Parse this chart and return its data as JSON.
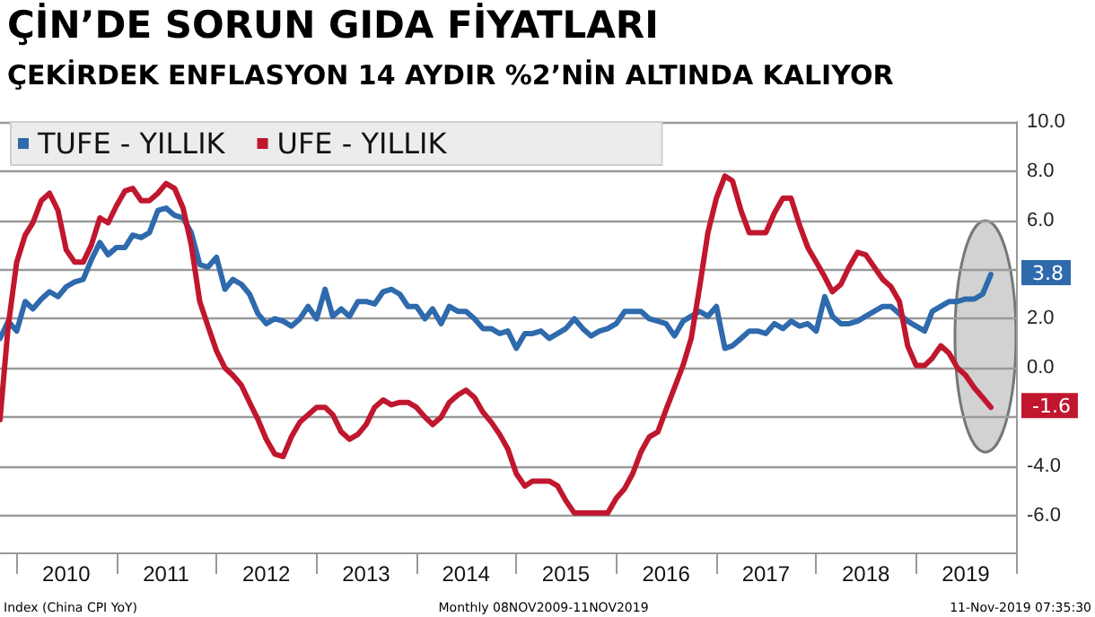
{
  "chart_data": {
    "type": "line",
    "title": "ÇİN’DE SORUN GIDA FİYATLARI",
    "subtitle": "ÇEKİRDEK ENFLASYON 14 AYDIR %2’NİN ALTINDA KALIYOR",
    "x": [
      "2009-11",
      "2009-12",
      "2010-01",
      "2010-02",
      "2010-03",
      "2010-04",
      "2010-05",
      "2010-06",
      "2010-07",
      "2010-08",
      "2010-09",
      "2010-10",
      "2010-11",
      "2010-12",
      "2011-01",
      "2011-02",
      "2011-03",
      "2011-04",
      "2011-05",
      "2011-06",
      "2011-07",
      "2011-08",
      "2011-09",
      "2011-10",
      "2011-11",
      "2011-12",
      "2012-01",
      "2012-02",
      "2012-03",
      "2012-04",
      "2012-05",
      "2012-06",
      "2012-07",
      "2012-08",
      "2012-09",
      "2012-10",
      "2012-11",
      "2012-12",
      "2013-01",
      "2013-02",
      "2013-03",
      "2013-04",
      "2013-05",
      "2013-06",
      "2013-07",
      "2013-08",
      "2013-09",
      "2013-10",
      "2013-11",
      "2013-12",
      "2014-01",
      "2014-02",
      "2014-03",
      "2014-04",
      "2014-05",
      "2014-06",
      "2014-07",
      "2014-08",
      "2014-09",
      "2014-10",
      "2014-11",
      "2014-12",
      "2015-01",
      "2015-02",
      "2015-03",
      "2015-04",
      "2015-05",
      "2015-06",
      "2015-07",
      "2015-08",
      "2015-09",
      "2015-10",
      "2015-11",
      "2015-12",
      "2016-01",
      "2016-02",
      "2016-03",
      "2016-04",
      "2016-05",
      "2016-06",
      "2016-07",
      "2016-08",
      "2016-09",
      "2016-10",
      "2016-11",
      "2016-12",
      "2017-01",
      "2017-02",
      "2017-03",
      "2017-04",
      "2017-05",
      "2017-06",
      "2017-07",
      "2017-08",
      "2017-09",
      "2017-10",
      "2017-11",
      "2017-12",
      "2018-01",
      "2018-02",
      "2018-03",
      "2018-04",
      "2018-05",
      "2018-06",
      "2018-07",
      "2018-08",
      "2018-09",
      "2018-10",
      "2018-11",
      "2018-12",
      "2019-01",
      "2019-02",
      "2019-03",
      "2019-04",
      "2019-05",
      "2019-06",
      "2019-07",
      "2019-08",
      "2019-09",
      "2019-10"
    ],
    "series": [
      {
        "name": "TUFE - YILLIK",
        "color": "#2e6aac",
        "values": [
          1.2,
          1.9,
          1.5,
          2.7,
          2.4,
          2.8,
          3.1,
          2.9,
          3.3,
          3.5,
          3.6,
          4.4,
          5.1,
          4.6,
          4.9,
          4.9,
          5.4,
          5.3,
          5.5,
          6.4,
          6.5,
          6.2,
          6.1,
          5.5,
          4.2,
          4.1,
          4.5,
          3.2,
          3.6,
          3.4,
          3.0,
          2.2,
          1.8,
          2.0,
          1.9,
          1.7,
          2.0,
          2.5,
          2.0,
          3.2,
          2.1,
          2.4,
          2.1,
          2.7,
          2.7,
          2.6,
          3.1,
          3.2,
          3.0,
          2.5,
          2.5,
          2.0,
          2.4,
          1.8,
          2.5,
          2.3,
          2.3,
          2.0,
          1.6,
          1.6,
          1.4,
          1.5,
          0.8,
          1.4,
          1.4,
          1.5,
          1.2,
          1.4,
          1.6,
          2.0,
          1.6,
          1.3,
          1.5,
          1.6,
          1.8,
          2.3,
          2.3,
          2.3,
          2.0,
          1.9,
          1.8,
          1.3,
          1.9,
          2.1,
          2.3,
          2.1,
          2.5,
          0.8,
          0.9,
          1.2,
          1.5,
          1.5,
          1.4,
          1.8,
          1.6,
          1.9,
          1.7,
          1.8,
          1.5,
          2.9,
          2.1,
          1.8,
          1.8,
          1.9,
          2.1,
          2.3,
          2.5,
          2.5,
          2.2,
          1.9,
          1.7,
          1.5,
          2.3,
          2.5,
          2.7,
          2.7,
          2.8,
          2.8,
          3.0,
          3.8
        ]
      },
      {
        "name": "UFE - YILLIK",
        "color": "#c0172f",
        "values": [
          -2.1,
          1.7,
          4.3,
          5.4,
          5.9,
          6.8,
          7.1,
          6.4,
          4.8,
          4.3,
          4.3,
          5.0,
          6.1,
          5.9,
          6.6,
          7.2,
          7.3,
          6.8,
          6.8,
          7.1,
          7.5,
          7.3,
          6.5,
          5.0,
          2.7,
          1.7,
          0.7,
          0.0,
          -0.3,
          -0.7,
          -1.4,
          -2.1,
          -2.9,
          -3.5,
          -3.6,
          -2.8,
          -2.2,
          -1.9,
          -1.6,
          -1.6,
          -1.9,
          -2.6,
          -2.9,
          -2.7,
          -2.3,
          -1.6,
          -1.3,
          -1.5,
          -1.4,
          -1.4,
          -1.6,
          -2.0,
          -2.3,
          -2.0,
          -1.4,
          -1.1,
          -0.9,
          -1.2,
          -1.8,
          -2.2,
          -2.7,
          -3.3,
          -4.3,
          -4.8,
          -4.6,
          -4.6,
          -4.6,
          -4.8,
          -5.4,
          -5.9,
          -5.9,
          -5.9,
          -5.9,
          -5.9,
          -5.3,
          -4.9,
          -4.3,
          -3.4,
          -2.8,
          -2.6,
          -1.7,
          -0.8,
          0.1,
          1.2,
          3.3,
          5.5,
          6.9,
          7.8,
          7.6,
          6.4,
          5.5,
          5.5,
          5.5,
          6.3,
          6.9,
          6.9,
          5.8,
          4.9,
          4.3,
          3.7,
          3.1,
          3.4,
          4.1,
          4.7,
          4.6,
          4.1,
          3.6,
          3.3,
          2.7,
          0.9,
          0.1,
          0.1,
          0.4,
          0.9,
          0.6,
          0.0,
          -0.3,
          -0.8,
          -1.2,
          -1.6
        ]
      }
    ],
    "xlim": [
      "2009-11",
      "2020-01"
    ],
    "xticks": [
      {
        "value": "2010-01",
        "label": null
      },
      {
        "value": "2010-07",
        "label": "2010"
      },
      {
        "value": "2011-01",
        "label": null
      },
      {
        "value": "2011-07",
        "label": "2011"
      },
      {
        "value": "2012-01",
        "label": null
      },
      {
        "value": "2012-07",
        "label": "2012"
      },
      {
        "value": "2013-01",
        "label": null
      },
      {
        "value": "2013-07",
        "label": "2013"
      },
      {
        "value": "2014-01",
        "label": null
      },
      {
        "value": "2014-07",
        "label": "2014"
      },
      {
        "value": "2015-01",
        "label": null
      },
      {
        "value": "2015-07",
        "label": "2015"
      },
      {
        "value": "2016-01",
        "label": null
      },
      {
        "value": "2016-07",
        "label": "2016"
      },
      {
        "value": "2017-01",
        "label": null
      },
      {
        "value": "2017-07",
        "label": "2017"
      },
      {
        "value": "2018-01",
        "label": null
      },
      {
        "value": "2018-07",
        "label": "2018"
      },
      {
        "value": "2019-01",
        "label": null
      },
      {
        "value": "2019-07",
        "label": "2019"
      },
      {
        "value": "2020-01",
        "label": null
      }
    ],
    "ylim": [
      -7.5,
      10
    ],
    "yticks": [
      {
        "value": -6,
        "label": "-6.0"
      },
      {
        "value": -4,
        "label": "-4.0"
      },
      {
        "value": -2,
        "label": null
      },
      {
        "value": 0,
        "label": "0.0"
      },
      {
        "value": 2,
        "label": "2.0"
      },
      {
        "value": 4,
        "label": null
      },
      {
        "value": 6,
        "label": "6.0"
      },
      {
        "value": 8,
        "label": "8.0"
      },
      {
        "value": 10,
        "label": "10.0"
      }
    ],
    "grid": "y",
    "legend": "top left",
    "marker": "none",
    "line_style": "solid",
    "annotations": [
      {
        "text": "3.8",
        "x": "2019-10",
        "y": 3.8
      },
      {
        "text": "-1.6",
        "x": "2019-10",
        "y": -1.6
      },
      "Index (China CPI YoY)",
      "Monthly 08NOV2009-11NOV2019",
      "11-Nov-2019 07:35:30"
    ]
  }
}
